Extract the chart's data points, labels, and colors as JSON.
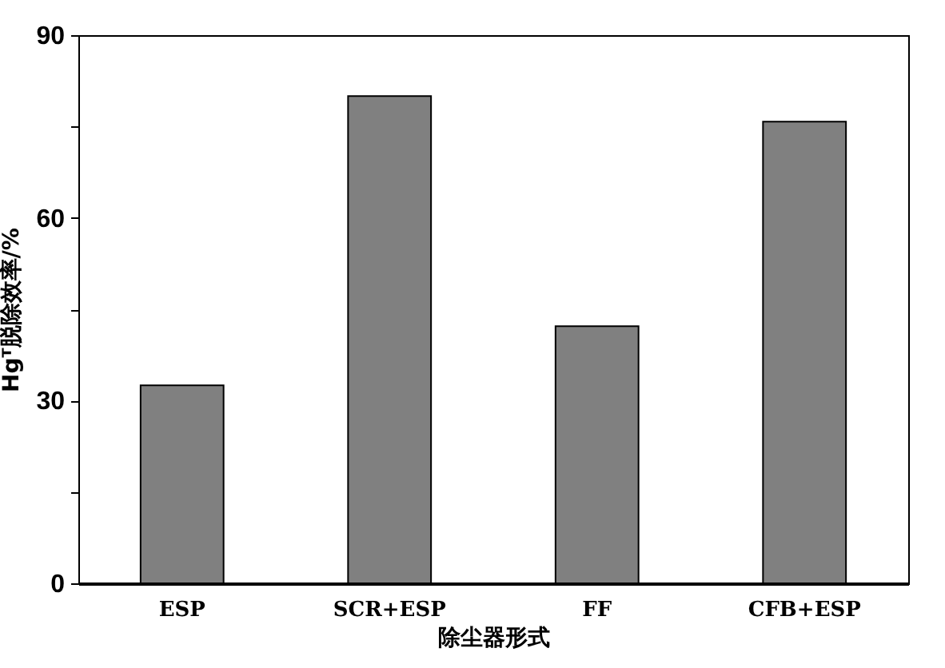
{
  "chart_data": {
    "type": "bar",
    "xlabel": "除尘器形式",
    "ylabel": "Hgᵀ脱除效率/%",
    "categories": [
      "ESP",
      "SCR+ESP",
      "FF",
      "CFB+ESP"
    ],
    "values": [
      32.5,
      80,
      42.2,
      75.8
    ],
    "color": "#808080",
    "ylim": [
      0,
      90
    ],
    "yticks": [
      0,
      {
        "value": 15,
        "label": null
      },
      30,
      {
        "value": 45,
        "label": null
      },
      60,
      {
        "value": 75,
        "label": null
      },
      90
    ],
    "grid": false
  }
}
